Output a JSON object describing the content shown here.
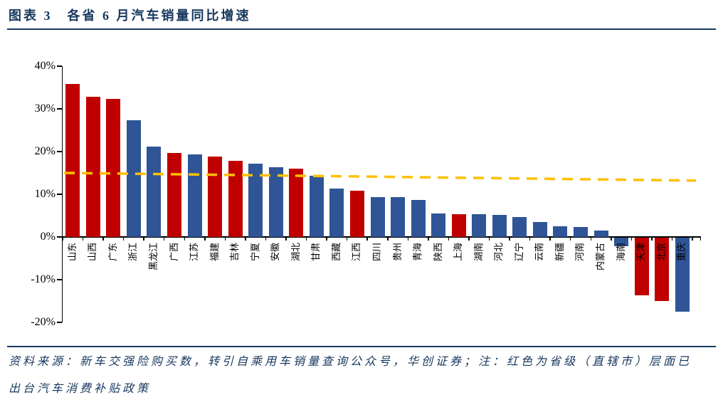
{
  "header": {
    "title": "图表 3　各省 6 月汽车销量同比增速"
  },
  "footer": {
    "source_note": "资料来源：新车交强险购买数，转引自乘用车销量查询公众号，华创证券；注：红色为省级（直辖市）层面已出台汽车消费补贴政策"
  },
  "colors": {
    "red": "#C00000",
    "blue": "#2F5597",
    "trend": "#FFC000",
    "navy": "#17375E",
    "axis": "#000000"
  },
  "chart_data": {
    "type": "bar",
    "title": "各省6月汽车销量同比增速",
    "ylabel": "同比增速",
    "categories": [
      "山东",
      "山西",
      "广东",
      "浙江",
      "黑龙江",
      "广西",
      "江苏",
      "福建",
      "吉林",
      "宁夏",
      "安徽",
      "湖北",
      "甘肃",
      "西藏",
      "江西",
      "四川",
      "贵州",
      "青海",
      "陕西",
      "上海",
      "湖南",
      "河北",
      "辽宁",
      "云南",
      "新疆",
      "河南",
      "内蒙古",
      "海南",
      "天津",
      "北京",
      "重庆"
    ],
    "values": [
      35.8,
      32.8,
      32.3,
      27.3,
      21.2,
      19.7,
      19.3,
      18.8,
      17.8,
      17.2,
      16.3,
      16.0,
      14.3,
      11.3,
      10.8,
      9.3,
      9.3,
      8.7,
      5.5,
      5.4,
      5.3,
      5.2,
      4.7,
      3.5,
      2.5,
      2.3,
      1.5,
      -2.0,
      -13.5,
      -14.8,
      -17.3
    ],
    "bar_colors": [
      "red",
      "red",
      "red",
      "blue",
      "blue",
      "red",
      "blue",
      "red",
      "red",
      "blue",
      "blue",
      "red",
      "blue",
      "blue",
      "red",
      "blue",
      "blue",
      "blue",
      "blue",
      "red",
      "blue",
      "blue",
      "blue",
      "blue",
      "blue",
      "blue",
      "blue",
      "blue",
      "red",
      "red",
      "blue"
    ],
    "red_means": "省级（直辖市）层面已出台汽车消费补贴政策",
    "ylim": [
      -20,
      40
    ],
    "ytick_values": [
      40,
      30,
      20,
      10,
      0,
      -10,
      -20
    ],
    "ytick_labels": [
      "40%",
      "30%",
      "20%",
      "10%",
      "0%",
      "-10%",
      "-20%"
    ],
    "grid": false,
    "legend_position": "none",
    "trend_line": {
      "style": "dashed",
      "color": "#FFC000",
      "start_pct": 15.0,
      "end_pct": 13.2
    }
  }
}
